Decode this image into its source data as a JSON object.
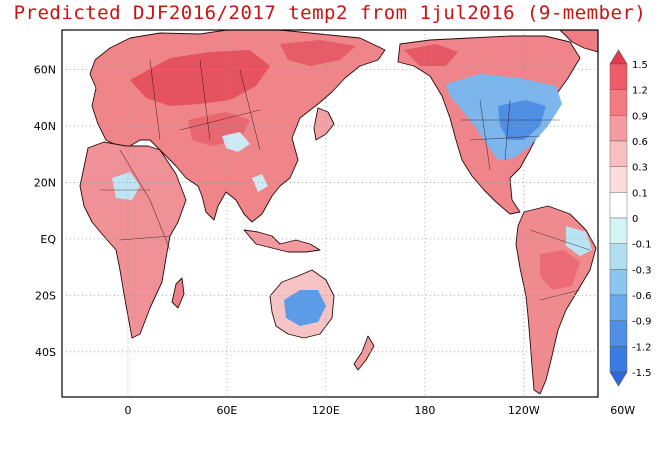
{
  "title": "Predicted DJF2016/2017 temp2 from 1jul2016 (9-member)",
  "map": {
    "lon_range": [
      -40,
      285
    ],
    "lat_range": [
      -56,
      74
    ],
    "lon_ticks": [
      {
        "lon": 0,
        "label": "0"
      },
      {
        "lon": 60,
        "label": "60E"
      },
      {
        "lon": 120,
        "label": "120E"
      },
      {
        "lon": 180,
        "label": "180"
      },
      {
        "lon": 240,
        "label": "120W"
      },
      {
        "lon": 300,
        "label": "60W"
      }
    ],
    "lat_ticks": [
      {
        "lat": 60,
        "label": "60N"
      },
      {
        "lat": 40,
        "label": "40N"
      },
      {
        "lat": 20,
        "label": "20N"
      },
      {
        "lat": 0,
        "label": "EQ"
      },
      {
        "lat": -20,
        "label": "20S"
      },
      {
        "lat": -40,
        "label": "40S"
      }
    ],
    "grid": "dotted"
  },
  "colorbar": {
    "levels": [
      "1.5",
      "1.2",
      "0.9",
      "0.6",
      "0.3",
      "0.1",
      "0",
      "-0.1",
      "-0.3",
      "-0.6",
      "-0.9",
      "-1.2",
      "-1.5"
    ],
    "colors": [
      "#e5384d",
      "#ee5c68",
      "#f27a80",
      "#f49c9f",
      "#f8bfc0",
      "#fbdcdc",
      "#ffffff",
      "#d4f4f4",
      "#b2dff0",
      "#8cc5ee",
      "#6aaaea",
      "#4f8fe6",
      "#3b7ae2",
      "#2a6ade"
    ]
  }
}
